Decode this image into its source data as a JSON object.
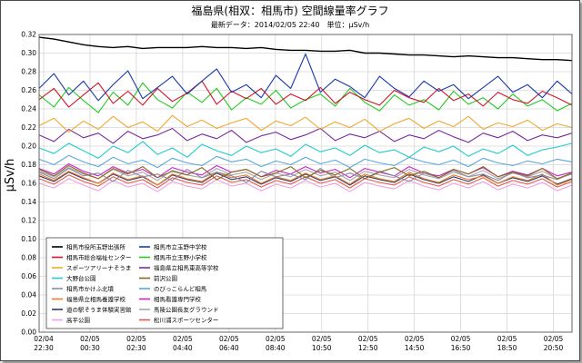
{
  "chart_data": {
    "type": "line",
    "title": "福島県(相双：相馬市) 空間線量率グラフ",
    "subtitle": "最新データ：2014/02/05 22:40　単位：μSv/h",
    "ylabel": "μSv/h",
    "xlabel": "",
    "ylim": [
      0.0,
      0.32
    ],
    "yticks": [
      "0.00",
      "0.02",
      "0.04",
      "0.06",
      "0.08",
      "0.10",
      "0.12",
      "0.14",
      "0.16",
      "0.18",
      "0.20",
      "0.22",
      "0.24",
      "0.26",
      "0.28",
      "0.30",
      "0.32"
    ],
    "x_ticks": [
      {
        "date": "02/04",
        "time": "22:30"
      },
      {
        "date": "02/05",
        "time": "00:30"
      },
      {
        "date": "02/05",
        "time": "02:30"
      },
      {
        "date": "02/05",
        "time": "04:40"
      },
      {
        "date": "02/05",
        "time": "06:40"
      },
      {
        "date": "02/05",
        "time": "08:40"
      },
      {
        "date": "02/05",
        "time": "10:50"
      },
      {
        "date": "02/05",
        "time": "12:50"
      },
      {
        "date": "02/05",
        "time": "14:50"
      },
      {
        "date": "02/05",
        "time": "16:50"
      },
      {
        "date": "02/05",
        "time": "18:50"
      },
      {
        "date": "02/05",
        "time": "20:50"
      }
    ],
    "grid": true,
    "legend_position": "bottom-left",
    "series": [
      {
        "name": "相馬市役所玉野出張所",
        "color": "#000000",
        "values": [
          0.317,
          0.315,
          0.312,
          0.309,
          0.307,
          0.306,
          0.307,
          0.305,
          0.306,
          0.306,
          0.306,
          0.307,
          0.306,
          0.306,
          0.305,
          0.306,
          0.304,
          0.303,
          0.303,
          0.302,
          0.302,
          0.303,
          0.3,
          0.3,
          0.299,
          0.298,
          0.298,
          0.297,
          0.296,
          0.297,
          0.296,
          0.295,
          0.295,
          0.294,
          0.293,
          0.293,
          0.292
        ]
      },
      {
        "name": "相馬市立玉野中学校",
        "color": "#1a3aa8",
        "values": [
          0.262,
          0.278,
          0.255,
          0.27,
          0.249,
          0.266,
          0.281,
          0.251,
          0.263,
          0.275,
          0.256,
          0.27,
          0.283,
          0.258,
          0.266,
          0.252,
          0.276,
          0.262,
          0.299,
          0.258,
          0.272,
          0.264,
          0.252,
          0.275,
          0.262,
          0.253,
          0.27,
          0.259,
          0.266,
          0.251,
          0.263,
          0.275,
          0.258,
          0.266,
          0.252,
          0.27,
          0.256
        ]
      },
      {
        "name": "相馬市総合福祉センター",
        "color": "#d4142a",
        "values": [
          0.25,
          0.262,
          0.242,
          0.255,
          0.268,
          0.246,
          0.259,
          0.244,
          0.262,
          0.248,
          0.257,
          0.27,
          0.245,
          0.259,
          0.251,
          0.262,
          0.245,
          0.256,
          0.249,
          0.263,
          0.246,
          0.258,
          0.25,
          0.244,
          0.26,
          0.252,
          0.247,
          0.262,
          0.249,
          0.256,
          0.243,
          0.258,
          0.25,
          0.246,
          0.259,
          0.252,
          0.244
        ]
      },
      {
        "name": "相馬市立玉野小学校",
        "color": "#22cc22",
        "values": [
          0.255,
          0.242,
          0.263,
          0.249,
          0.236,
          0.258,
          0.244,
          0.268,
          0.25,
          0.241,
          0.258,
          0.247,
          0.262,
          0.239,
          0.252,
          0.245,
          0.26,
          0.241,
          0.25,
          0.256,
          0.243,
          0.262,
          0.247,
          0.238,
          0.255,
          0.244,
          0.25,
          0.239,
          0.259,
          0.245,
          0.252,
          0.24,
          0.256,
          0.243,
          0.25,
          0.238,
          0.246
        ]
      },
      {
        "name": "スポーツアリーナそうま",
        "color": "#f0a830",
        "values": [
          0.222,
          0.23,
          0.215,
          0.227,
          0.218,
          0.232,
          0.22,
          0.226,
          0.216,
          0.233,
          0.221,
          0.228,
          0.219,
          0.225,
          0.23,
          0.217,
          0.227,
          0.222,
          0.231,
          0.218,
          0.226,
          0.22,
          0.229,
          0.216,
          0.224,
          0.23,
          0.219,
          0.227,
          0.221,
          0.232,
          0.218,
          0.225,
          0.221,
          0.228,
          0.217,
          0.224,
          0.22
        ]
      },
      {
        "name": "福島県立相馬東高等学校",
        "color": "#7a2aa0",
        "values": [
          0.212,
          0.205,
          0.218,
          0.209,
          0.214,
          0.203,
          0.216,
          0.208,
          0.212,
          0.219,
          0.206,
          0.213,
          0.208,
          0.217,
          0.204,
          0.211,
          0.215,
          0.207,
          0.212,
          0.219,
          0.206,
          0.213,
          0.209,
          0.216,
          0.205,
          0.212,
          0.208,
          0.217,
          0.21,
          0.204,
          0.214,
          0.209,
          0.216,
          0.206,
          0.212,
          0.209,
          0.214
        ]
      },
      {
        "name": "大野台公園",
        "color": "#22cccc",
        "values": [
          0.198,
          0.192,
          0.203,
          0.195,
          0.187,
          0.2,
          0.193,
          0.205,
          0.191,
          0.198,
          0.188,
          0.202,
          0.195,
          0.19,
          0.2,
          0.193,
          0.197,
          0.189,
          0.202,
          0.194,
          0.198,
          0.19,
          0.201,
          0.193,
          0.196,
          0.188,
          0.199,
          0.194,
          0.2,
          0.189,
          0.197,
          0.192,
          0.201,
          0.19,
          0.196,
          0.199,
          0.203
        ]
      },
      {
        "name": "前沢公園",
        "color": "#8a6a1a",
        "values": [
          0.175,
          0.168,
          0.179,
          0.171,
          0.165,
          0.176,
          0.17,
          0.178,
          0.166,
          0.173,
          0.169,
          0.177,
          0.164,
          0.172,
          0.175,
          0.167,
          0.171,
          0.178,
          0.166,
          0.174,
          0.169,
          0.176,
          0.165,
          0.172,
          0.177,
          0.168,
          0.173,
          0.166,
          0.175,
          0.17,
          0.178,
          0.167,
          0.172,
          0.168,
          0.176,
          0.165,
          0.171
        ]
      },
      {
        "name": "相馬市かけふ北墳",
        "color": "#8a8aa8",
        "values": [
          0.172,
          0.165,
          0.176,
          0.168,
          0.171,
          0.162,
          0.174,
          0.167,
          0.17,
          0.163,
          0.175,
          0.166,
          0.172,
          0.168,
          0.161,
          0.173,
          0.167,
          0.17,
          0.164,
          0.176,
          0.166,
          0.171,
          0.165,
          0.173,
          0.168,
          0.162,
          0.171,
          0.166,
          0.174,
          0.167,
          0.17,
          0.163,
          0.172,
          0.166,
          0.169,
          0.164,
          0.171
        ]
      },
      {
        "name": "のびっこらんど相馬",
        "color": "#5aa8d8",
        "values": [
          0.186,
          0.18,
          0.19,
          0.183,
          0.178,
          0.188,
          0.181,
          0.185,
          0.177,
          0.187,
          0.182,
          0.179,
          0.189,
          0.183,
          0.186,
          0.178,
          0.184,
          0.18,
          0.188,
          0.181,
          0.185,
          0.177,
          0.186,
          0.182,
          0.179,
          0.188,
          0.183,
          0.18,
          0.185,
          0.178,
          0.187,
          0.182,
          0.179,
          0.184,
          0.181,
          0.186,
          0.183
        ]
      },
      {
        "name": "福島県立相馬養護学校",
        "color": "#f07a2a",
        "values": [
          0.17,
          0.163,
          0.173,
          0.166,
          0.16,
          0.171,
          0.164,
          0.168,
          0.158,
          0.17,
          0.165,
          0.162,
          0.172,
          0.166,
          0.169,
          0.16,
          0.167,
          0.163,
          0.171,
          0.164,
          0.168,
          0.159,
          0.17,
          0.165,
          0.162,
          0.172,
          0.165,
          0.161,
          0.169,
          0.164,
          0.168,
          0.16,
          0.167,
          0.163,
          0.17,
          0.158,
          0.164
        ]
      },
      {
        "name": "相馬看護専門学校",
        "color": "#cc22cc",
        "values": [
          0.176,
          0.17,
          0.181,
          0.173,
          0.168,
          0.178,
          0.171,
          0.175,
          0.166,
          0.177,
          0.172,
          0.169,
          0.179,
          0.172,
          0.175,
          0.167,
          0.174,
          0.17,
          0.178,
          0.171,
          0.175,
          0.166,
          0.176,
          0.172,
          0.168,
          0.178,
          0.171,
          0.168,
          0.175,
          0.17,
          0.177,
          0.167,
          0.173,
          0.169,
          0.176,
          0.168,
          0.172
        ]
      },
      {
        "name": "道の駅そうま体験実習館",
        "color": "#2a3a6a",
        "values": [
          0.168,
          0.162,
          0.172,
          0.165,
          0.16,
          0.17,
          0.163,
          0.167,
          0.158,
          0.169,
          0.164,
          0.161,
          0.171,
          0.164,
          0.167,
          0.159,
          0.166,
          0.162,
          0.17,
          0.163,
          0.167,
          0.158,
          0.168,
          0.164,
          0.161,
          0.17,
          0.164,
          0.16,
          0.167,
          0.162,
          0.169,
          0.16,
          0.166,
          0.162,
          0.168,
          0.159,
          0.165
        ]
      },
      {
        "name": "馬陵公園長友グラウンド",
        "color": "#a8a8a8",
        "values": [
          0.173,
          0.167,
          0.177,
          0.17,
          0.165,
          0.175,
          0.168,
          0.172,
          0.163,
          0.174,
          0.169,
          0.166,
          0.176,
          0.169,
          0.172,
          0.164,
          0.171,
          0.167,
          0.175,
          0.168,
          0.172,
          0.163,
          0.173,
          0.169,
          0.166,
          0.175,
          0.169,
          0.165,
          0.172,
          0.167,
          0.174,
          0.165,
          0.171,
          0.167,
          0.173,
          0.165,
          0.17
        ]
      },
      {
        "name": "高平公園",
        "color": "#f0a0e0",
        "values": [
          0.16,
          0.155,
          0.165,
          0.158,
          0.152,
          0.163,
          0.156,
          0.16,
          0.151,
          0.162,
          0.157,
          0.154,
          0.164,
          0.157,
          0.16,
          0.152,
          0.159,
          0.155,
          0.163,
          0.156,
          0.16,
          0.151,
          0.161,
          0.157,
          0.154,
          0.163,
          0.157,
          0.153,
          0.16,
          0.155,
          0.162,
          0.153,
          0.159,
          0.155,
          0.161,
          0.152,
          0.158
        ]
      },
      {
        "name": "松川浦スポーツセンター",
        "color": "#e05a4a",
        "values": [
          0.165,
          0.159,
          0.169,
          0.162,
          0.157,
          0.167,
          0.16,
          0.164,
          0.155,
          0.166,
          0.161,
          0.158,
          0.168,
          0.161,
          0.164,
          0.156,
          0.163,
          0.159,
          0.167,
          0.16,
          0.164,
          0.155,
          0.165,
          0.161,
          0.158,
          0.167,
          0.161,
          0.157,
          0.164,
          0.159,
          0.166,
          0.157,
          0.163,
          0.159,
          0.165,
          0.156,
          0.162
        ]
      }
    ]
  }
}
